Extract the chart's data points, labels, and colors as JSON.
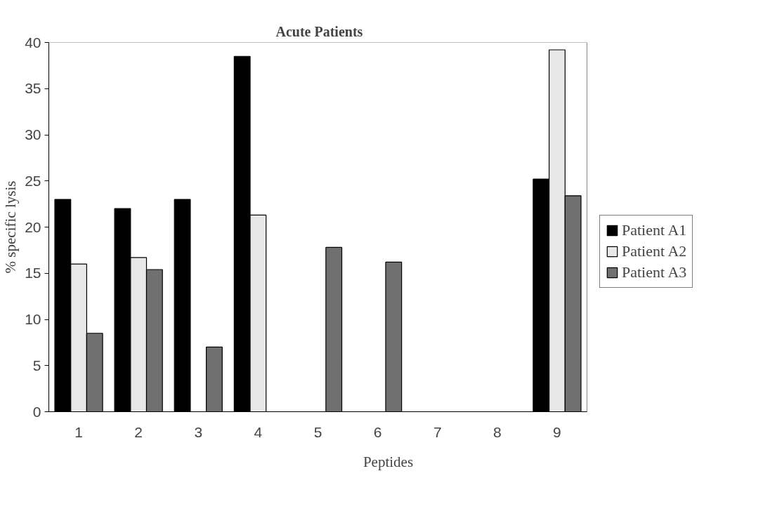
{
  "chart_data": {
    "type": "bar",
    "title": "Acute Patients",
    "xlabel": "Peptides",
    "ylabel": "% specific lysis",
    "categories": [
      "1",
      "2",
      "3",
      "4",
      "5",
      "6",
      "7",
      "8",
      "9"
    ],
    "series": [
      {
        "name": "Patient A1",
        "color": "#000000",
        "values": [
          23,
          22,
          23,
          38.5,
          null,
          null,
          null,
          null,
          25.2
        ]
      },
      {
        "name": "Patient A2",
        "color": "#e8e8e8",
        "values": [
          16,
          16.7,
          null,
          21.3,
          null,
          null,
          null,
          null,
          39.2
        ]
      },
      {
        "name": "Patient A3",
        "color": "#707070",
        "values": [
          8.5,
          15.4,
          7,
          null,
          17.8,
          16.2,
          null,
          null,
          23.4
        ]
      }
    ],
    "ylim": [
      0,
      40
    ],
    "yticks": [
      0,
      5,
      10,
      15,
      20,
      25,
      30,
      35,
      40
    ],
    "grid": false,
    "legend": "right"
  }
}
